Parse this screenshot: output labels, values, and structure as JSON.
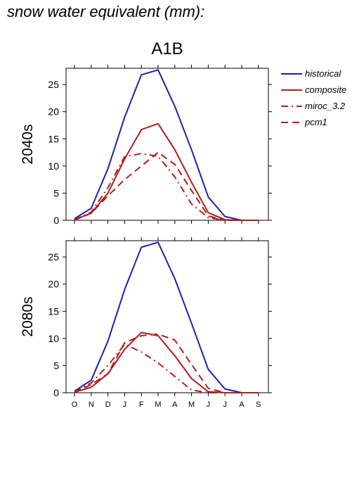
{
  "header": {
    "title": "snow water equivalent (mm):",
    "scenario": "A1B"
  },
  "colors": {
    "historical": "#2020b0",
    "projection": "#b01e1e"
  },
  "legend": [
    {
      "name": "historical",
      "dash": "solid",
      "color": "#2020b0"
    },
    {
      "name": "composite",
      "dash": "solid",
      "color": "#b01e1e"
    },
    {
      "name": "miroc_3.2",
      "dash": "dashdot",
      "color": "#b01e1e"
    },
    {
      "name": "pcm1",
      "dash": "dash",
      "color": "#b01e1e"
    }
  ],
  "chart_data": [
    {
      "type": "line",
      "ylabel": "2040s",
      "categories": [
        "O",
        "N",
        "D",
        "J",
        "F",
        "M",
        "A",
        "M",
        "J",
        "J",
        "A",
        "S"
      ],
      "ylim": [
        0,
        28
      ],
      "yticks": [
        0,
        5,
        10,
        15,
        20,
        25
      ],
      "series": [
        {
          "name": "historical",
          "values": [
            0.3,
            2.2,
            9.5,
            19.0,
            26.8,
            27.7,
            21.0,
            13.0,
            4.3,
            0.7,
            0.0,
            0.0
          ]
        },
        {
          "name": "composite",
          "values": [
            0.1,
            1.3,
            5.0,
            11.3,
            16.7,
            17.8,
            13.0,
            7.0,
            1.4,
            0.1,
            0.0,
            0.0
          ]
        },
        {
          "name": "miroc_3.2",
          "values": [
            0.1,
            1.5,
            6.0,
            11.7,
            12.3,
            11.8,
            8.0,
            3.0,
            0.5,
            0.0,
            0.0,
            0.0
          ]
        },
        {
          "name": "pcm1",
          "values": [
            0.0,
            1.3,
            4.5,
            7.5,
            10.0,
            12.5,
            10.3,
            5.5,
            0.8,
            0.0,
            0.0,
            0.0
          ]
        }
      ]
    },
    {
      "type": "line",
      "ylabel": "2080s",
      "categories": [
        "O",
        "N",
        "D",
        "J",
        "F",
        "M",
        "A",
        "M",
        "J",
        "J",
        "A",
        "S"
      ],
      "ylim": [
        0,
        28
      ],
      "yticks": [
        0,
        5,
        10,
        15,
        20,
        25
      ],
      "series": [
        {
          "name": "historical",
          "values": [
            0.3,
            2.3,
            9.5,
            19.0,
            26.8,
            27.7,
            21.0,
            12.8,
            4.3,
            0.7,
            0.0,
            0.0
          ]
        },
        {
          "name": "composite",
          "values": [
            0.1,
            1.0,
            3.5,
            8.0,
            11.1,
            10.5,
            6.8,
            2.6,
            0.2,
            0.0,
            0.0,
            0.0
          ]
        },
        {
          "name": "miroc_3.2",
          "values": [
            0.2,
            1.8,
            5.0,
            8.9,
            7.5,
            5.5,
            3.0,
            0.5,
            0.0,
            0.0,
            0.0,
            0.0
          ]
        },
        {
          "name": "pcm1",
          "values": [
            0.0,
            1.5,
            3.5,
            9.2,
            10.5,
            10.8,
            9.7,
            5.2,
            0.8,
            0.0,
            0.0,
            0.0
          ]
        }
      ]
    }
  ]
}
